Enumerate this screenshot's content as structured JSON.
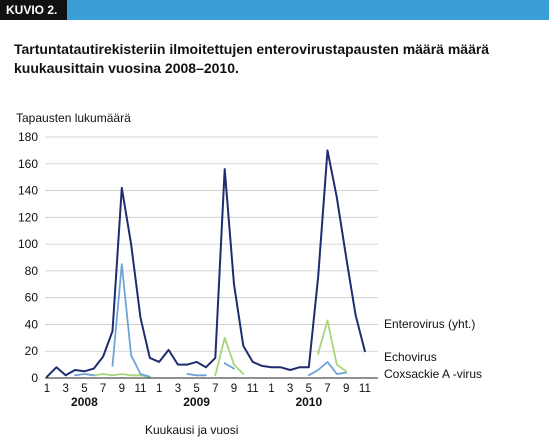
{
  "header": {
    "tag": "KUVIO 2.",
    "title": "Tartuntatautirekisteriin ilmoitettujen enterovirustapausten määrä määrä kuukausittain vuosina 2008–2010.",
    "accent_color": "#3a9fd6",
    "tag_color": "#111111"
  },
  "chart_data": {
    "type": "line",
    "title": "Tartuntatautirekisteriin ilmoitettujen enterovirustapausten määrä määrä kuukausittain vuosina 2008–2010.",
    "ylabel": "Tapausten lukumäärä",
    "xlabel": "Kuukausi ja vuosi",
    "ylim": [
      0,
      180
    ],
    "yticks": [
      0,
      20,
      40,
      60,
      80,
      100,
      120,
      140,
      160,
      180
    ],
    "grid": true,
    "legend": "right",
    "x_tick_labels": [
      "1",
      "3",
      "5",
      "7",
      "9",
      "11",
      "1",
      "3",
      "5",
      "7",
      "9",
      "11",
      "1",
      "3",
      "5",
      "7",
      "9",
      "11"
    ],
    "years": [
      "2008",
      "2009",
      "2010"
    ],
    "series": [
      {
        "name": "Enterovirus (yht.)",
        "color": "#1f2d6e",
        "values": [
          1,
          8,
          2,
          6,
          5,
          7,
          16,
          35,
          142,
          100,
          45,
          15,
          12,
          21,
          10,
          10,
          12,
          8,
          15,
          156,
          70,
          24,
          12,
          9,
          8,
          8,
          6,
          8,
          8,
          75,
          170,
          135,
          90,
          47,
          20
        ]
      },
      {
        "name": "Echovirus",
        "color": "#6fa3d8",
        "values": [
          null,
          null,
          null,
          2,
          3,
          2,
          null,
          9,
          85,
          17,
          3,
          1,
          null,
          null,
          null,
          3,
          2,
          2,
          null,
          11,
          7,
          null,
          null,
          null,
          null,
          null,
          null,
          null,
          2,
          6,
          12,
          3,
          4,
          null,
          null
        ]
      },
      {
        "name": "Coxsackie A -virus",
        "color": "#a8d57a",
        "values": [
          null,
          null,
          null,
          null,
          null,
          2,
          3,
          2,
          3,
          2,
          2,
          1,
          null,
          null,
          null,
          null,
          null,
          null,
          2,
          30,
          10,
          3,
          null,
          null,
          null,
          null,
          null,
          null,
          null,
          18,
          43,
          10,
          5,
          null,
          null
        ]
      }
    ]
  }
}
